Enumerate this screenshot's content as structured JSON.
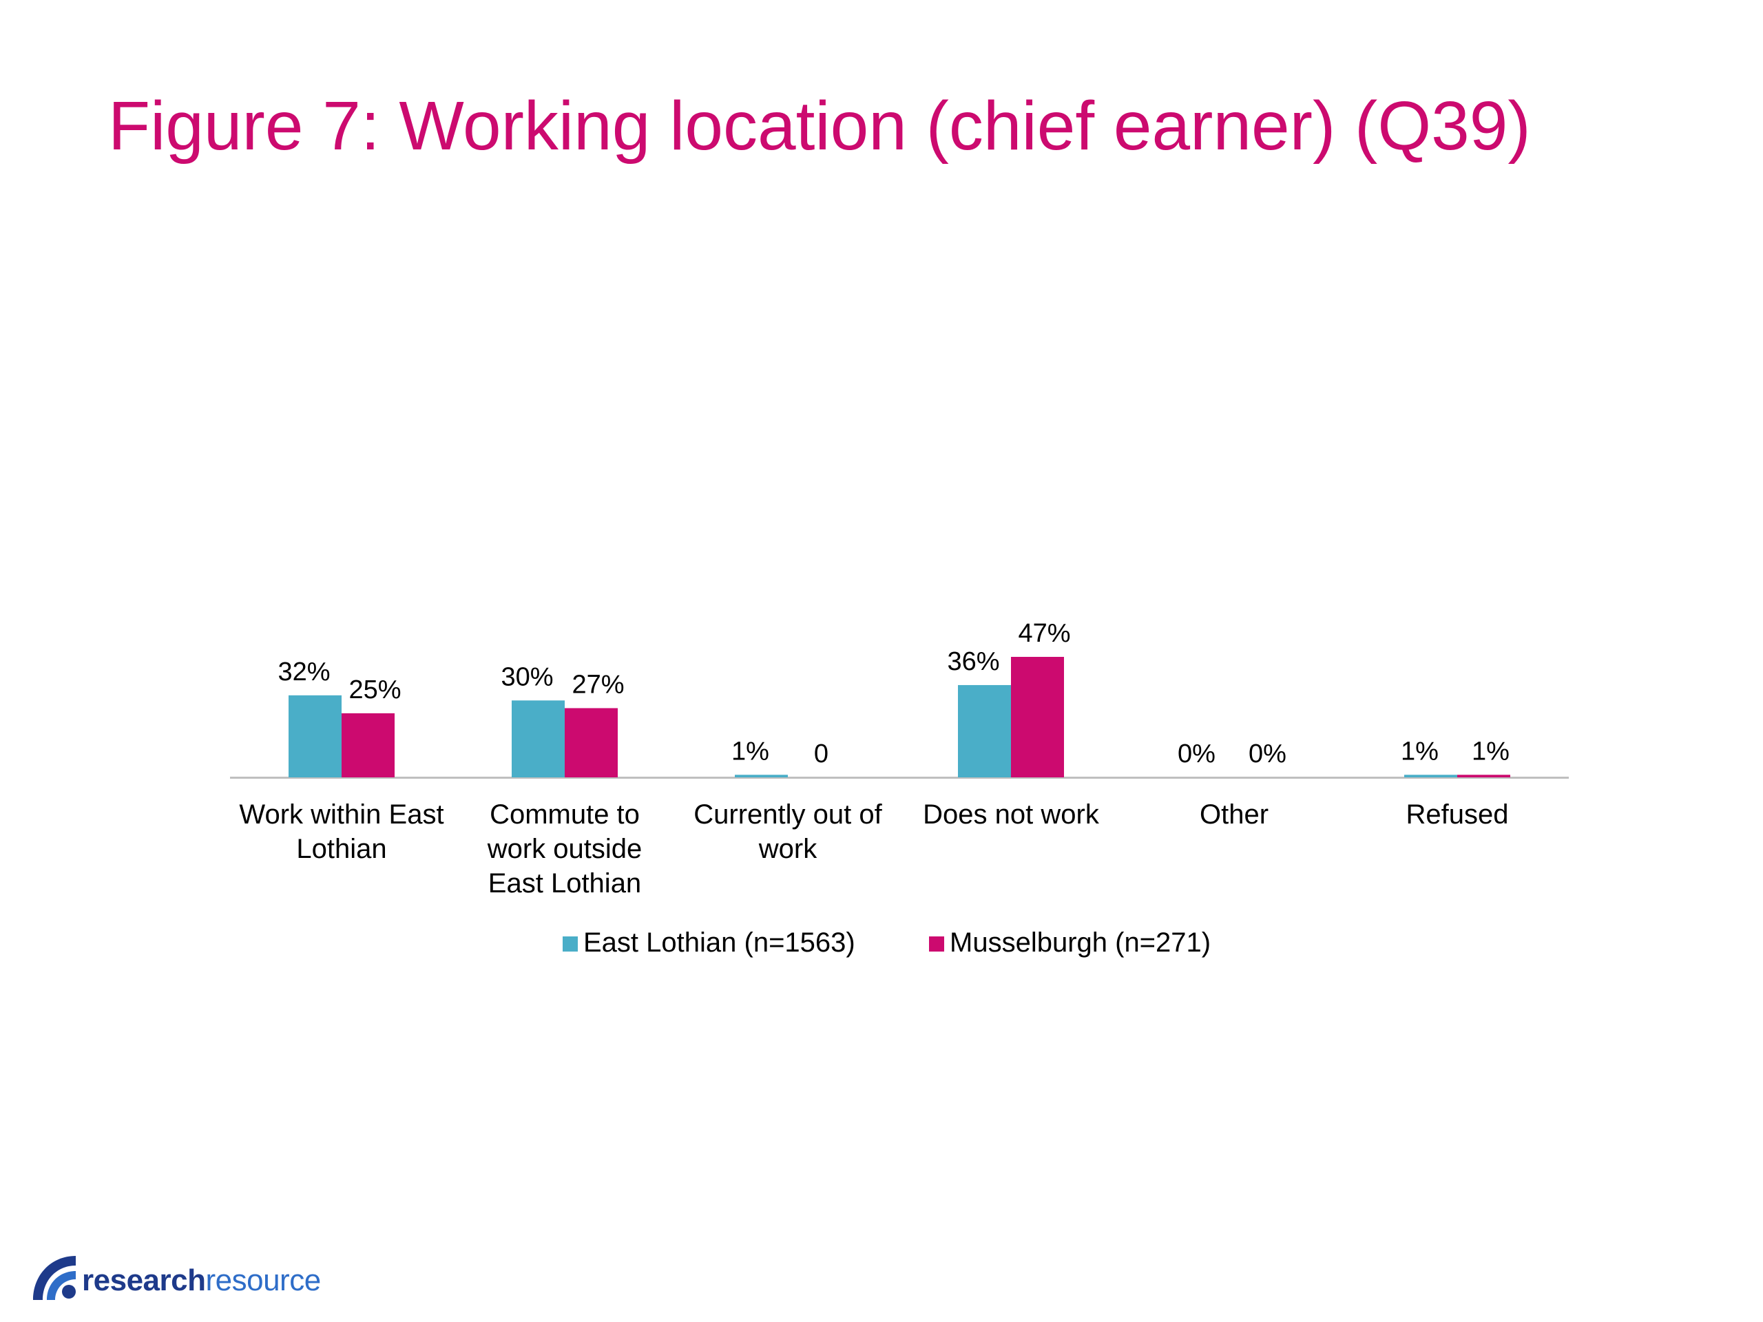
{
  "slide": {
    "title": "Figure 7: Working location (chief earner) (Q39)"
  },
  "colors": {
    "title": "#cc0a6f",
    "east_lothian": "#4aaec8",
    "musselburgh": "#cc0a6f",
    "axis": "#bfbfbf",
    "text": "#000000",
    "logo_dark": "#1e3a8a",
    "logo_blue": "#2e6dc8"
  },
  "chart_data": {
    "type": "bar",
    "categories": [
      [
        "Work within East",
        "Lothian"
      ],
      [
        "Commute to",
        "work outside",
        "East Lothian"
      ],
      [
        "Currently out of",
        "work"
      ],
      [
        "Does not work"
      ],
      [
        "Other"
      ],
      [
        "Refused"
      ]
    ],
    "series": [
      {
        "name": "East Lothian (n=1563)",
        "values": [
          32,
          30,
          1,
          36,
          0,
          1
        ],
        "labels": [
          "32%",
          "30%",
          "1%",
          "36%",
          "0%",
          "1%"
        ]
      },
      {
        "name": "Musselburgh (n=271)",
        "values": [
          25,
          27,
          0,
          47,
          0,
          1
        ],
        "labels": [
          "25%",
          "27%",
          "0",
          "47%",
          "0%",
          "1%"
        ]
      }
    ],
    "ylim": [
      0,
      47
    ],
    "grid": false,
    "legend": "bottom"
  },
  "logo": {
    "part1": "research",
    "part2": "resource"
  }
}
